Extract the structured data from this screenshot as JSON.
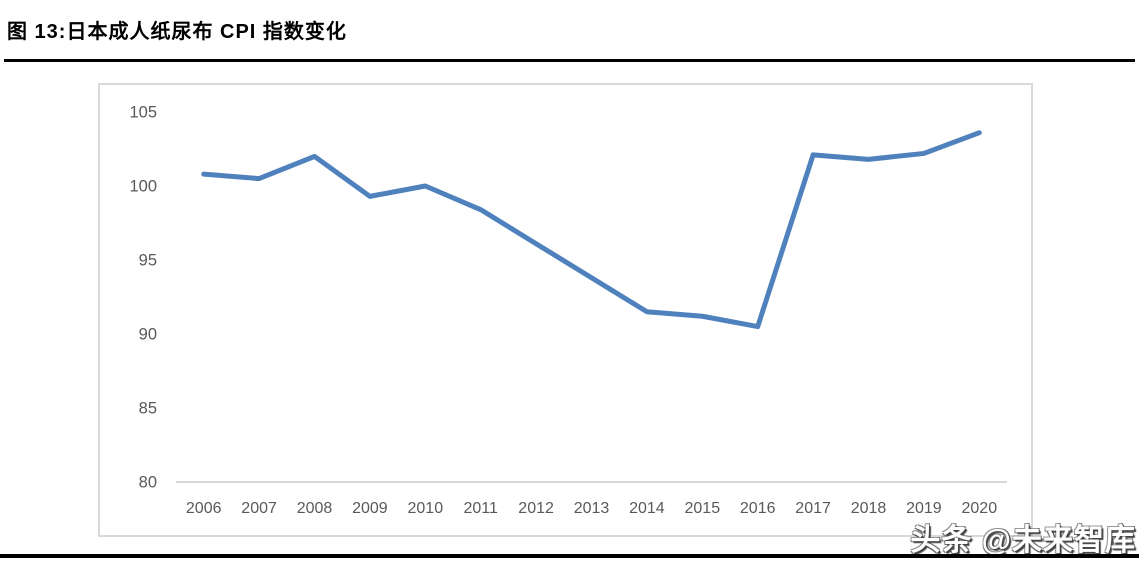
{
  "page": {
    "figure_title": "图 13:日本成人纸尿布 CPI 指数变化",
    "watermark": "头条 @未来智库"
  },
  "chart_data": {
    "type": "line",
    "title": "图 13:日本成人纸尿布 CPI 指数变化",
    "categories": [
      "2006",
      "2007",
      "2008",
      "2009",
      "2010",
      "2011",
      "2012",
      "2013",
      "2014",
      "2015",
      "2016",
      "2017",
      "2018",
      "2019",
      "2020"
    ],
    "values": [
      100.8,
      100.5,
      102.0,
      99.3,
      100.0,
      98.4,
      96.1,
      93.8,
      91.5,
      91.2,
      90.5,
      102.1,
      101.8,
      102.2,
      103.6
    ],
    "xlabel": "",
    "ylabel": "",
    "ylim": [
      80,
      105
    ],
    "yticks": [
      80,
      85,
      90,
      95,
      100,
      105
    ],
    "grid": false,
    "legend": false,
    "line_color": "#4F81BD",
    "axis_label_color": "#595959",
    "axis_line_color": "#BFBFBF",
    "frame_color": "#D9D9D9"
  }
}
